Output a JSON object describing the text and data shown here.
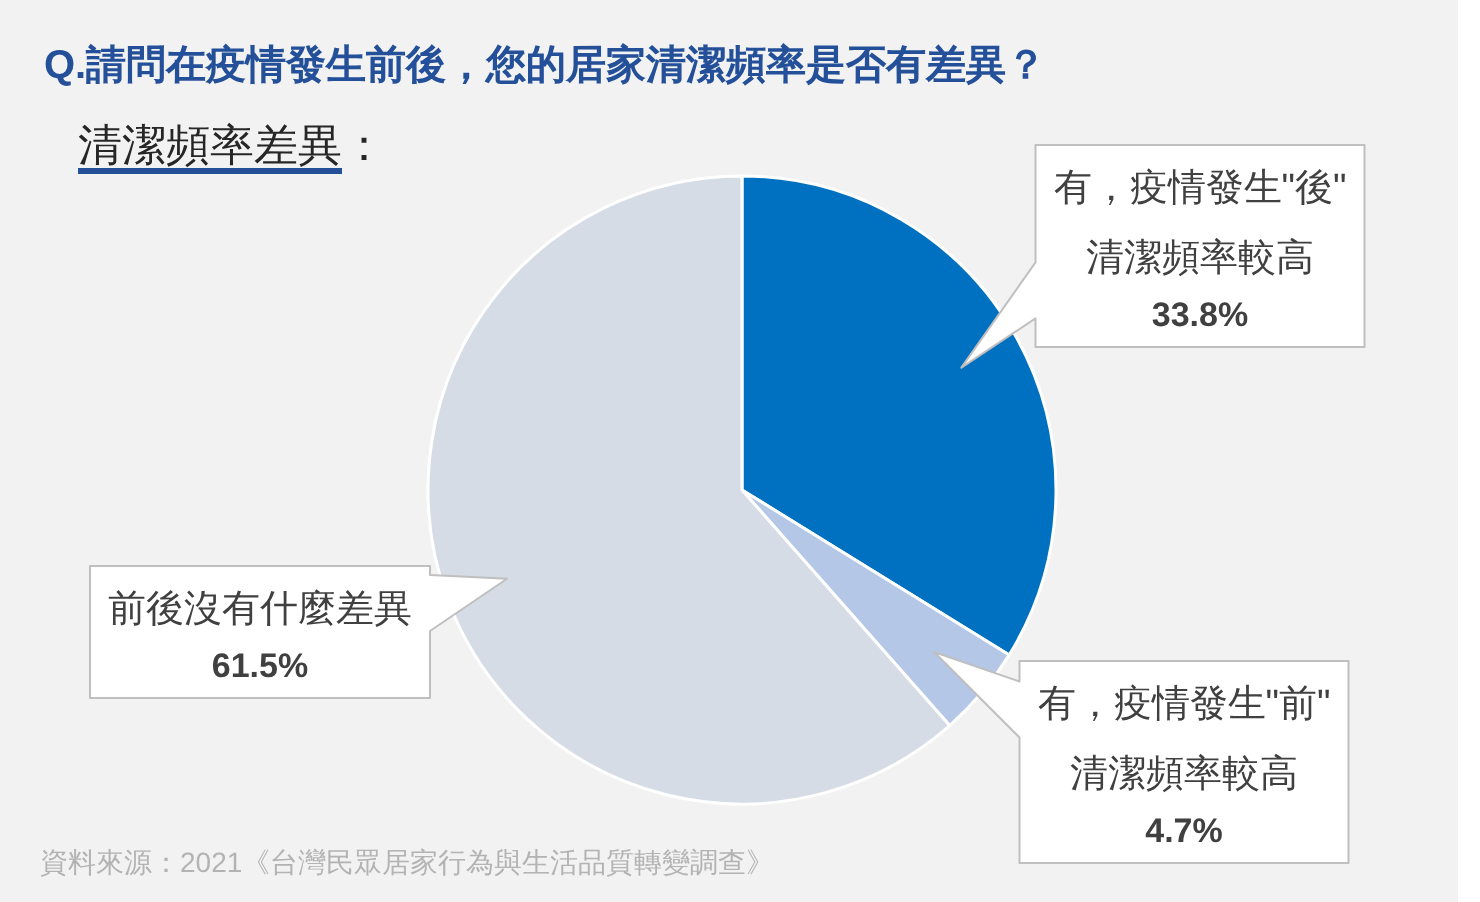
{
  "chart_data": {
    "type": "pie",
    "title": "Q.請問在疫情發生前後，您的居家清潔頻率是否有差異？",
    "subtitle": "清潔頻率差異：",
    "categories": [
      "有，疫情發生\"後\"\n清潔頻率較高",
      "有，疫情發生\"前\"\n清潔頻率較高",
      "前後沒有什麼差異"
    ],
    "values": [
      33.8,
      4.7,
      61.5
    ],
    "colors": [
      "#0070c0",
      "#b4c7e7",
      "#d6dce5"
    ],
    "value_labels": [
      "33.8%",
      "4.7%",
      "61.5%"
    ],
    "annotations": [
      "資料來源：2021《台灣民眾居家行為與生活品質轉變調查》"
    ]
  }
}
